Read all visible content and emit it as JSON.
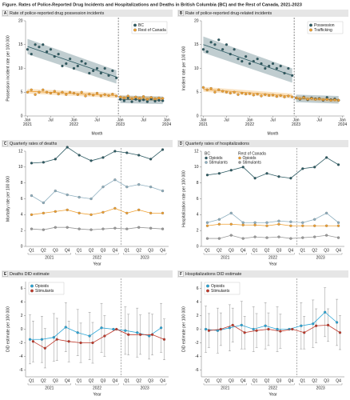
{
  "figure_title": "Figure. Rates of Police-Reported Drug Incidents and Hospitalizations and Deaths in British Columbia (BC) and the Rest of Canada, 2021-2023",
  "chart_data": [
    {
      "type": "scatter",
      "panel": "A",
      "title": "Rate of police-reported drug possession incidents",
      "x_label": "Month",
      "y_label": "Possession incident rate per 100 000",
      "x": [
        0,
        1,
        2,
        3,
        4,
        5,
        6,
        7,
        8,
        9,
        10,
        11,
        12,
        13,
        14,
        15,
        16,
        17,
        18,
        19,
        20,
        21,
        22,
        23,
        24,
        25,
        26,
        27,
        28,
        29,
        30,
        31,
        32,
        33,
        34,
        35
      ],
      "xlim": [
        -0.5,
        36.5
      ],
      "xticks": [
        {
          "value": 0,
          "label": "Jan 2021"
        },
        {
          "value": 6,
          "label": "Jul"
        },
        {
          "value": 12,
          "label": "Jan 2022"
        },
        {
          "value": 18,
          "label": "Jul"
        },
        {
          "value": 24,
          "label": "Jan 2023"
        },
        {
          "value": 30,
          "label": "Jul"
        },
        {
          "value": 36,
          "label": "Jan 2024"
        }
      ],
      "ylim": [
        0,
        20
      ],
      "yticks": [
        0,
        5,
        10,
        15,
        20
      ],
      "legend": "upper right",
      "series": [
        {
          "name": "BC",
          "color": "#2d5b63",
          "values": [
            14,
            13,
            15,
            14.5,
            15,
            13.5,
            14,
            12.5,
            13,
            10.5,
            11,
            12,
            10,
            10.5,
            11.5,
            11,
            9,
            9.5,
            10,
            9,
            10,
            8.5,
            9.5,
            8,
            3.5,
            3.2,
            3.8,
            3,
            3.5,
            3.2,
            3.4,
            3,
            3.6,
            3.1,
            3.3,
            3.2
          ]
        },
        {
          "name": "Rest of Canada",
          "color": "#f0a030",
          "values": [
            5,
            5.5,
            4.5,
            5,
            5.5,
            5,
            4.8,
            5.2,
            4.6,
            5,
            4.5,
            5,
            4.8,
            4.5,
            5,
            4.2,
            4.6,
            4.4,
            4.8,
            4.2,
            4.5,
            4.3,
            4.6,
            4.2,
            4,
            3.8,
            4.2,
            3.6,
            4,
            3.7,
            4.1,
            3.5,
            3.9,
            3.6,
            3.8,
            3.7
          ]
        }
      ],
      "fits": [
        {
          "color": "#2d5b63",
          "x": [
            0,
            23
          ],
          "values": [
            14.6,
            8.2
          ],
          "lower": [
            13,
            6.8
          ],
          "upper": [
            16.2,
            9.6
          ]
        },
        {
          "color": "#f0a030",
          "x": [
            0,
            23
          ],
          "values": [
            5.2,
            4.3
          ],
          "lower": [
            4.7,
            3.8
          ],
          "upper": [
            5.7,
            4.8
          ]
        },
        {
          "color": "#2d5b63",
          "x": [
            24,
            35
          ],
          "values": [
            3.5,
            3.3
          ],
          "lower": [
            2.7,
            2.5
          ],
          "upper": [
            4.3,
            4.1
          ]
        },
        {
          "color": "#f0a030",
          "x": [
            24,
            35
          ],
          "values": [
            3.9,
            3.6
          ],
          "lower": [
            3.5,
            3.2
          ],
          "upper": [
            4.3,
            4
          ]
        }
      ]
    },
    {
      "type": "scatter",
      "panel": "B",
      "title": "Rate of police-reported drug-related incidents",
      "x_label": "Month",
      "y_label": "Incident rate per 100 000",
      "x": [
        0,
        1,
        2,
        3,
        4,
        5,
        6,
        7,
        8,
        9,
        10,
        11,
        12,
        13,
        14,
        15,
        16,
        17,
        18,
        19,
        20,
        21,
        22,
        23,
        24,
        25,
        26,
        27,
        28,
        29,
        30,
        31,
        32,
        33,
        34,
        35
      ],
      "xlim": [
        -0.5,
        36.5
      ],
      "xticks": [
        {
          "value": 0,
          "label": "Jan 2021"
        },
        {
          "value": 6,
          "label": "Jul"
        },
        {
          "value": 12,
          "label": "Jan 2022"
        },
        {
          "value": 18,
          "label": "Jul"
        },
        {
          "value": 24,
          "label": "Jan 2023"
        },
        {
          "value": 30,
          "label": "Jul"
        },
        {
          "value": 36,
          "label": "Jan 2024"
        }
      ],
      "ylim": [
        0,
        20
      ],
      "yticks": [
        0,
        5,
        10,
        15,
        20
      ],
      "legend": "upper right",
      "series": [
        {
          "name": "Possession",
          "color": "#2d5b63",
          "values": [
            14,
            13.5,
            15.5,
            15,
            16,
            14,
            15,
            13,
            14,
            12,
            11.5,
            12.5,
            11,
            11.5,
            12,
            11,
            10,
            10.5,
            11,
            10,
            10.5,
            9,
            10,
            8.5,
            3.8,
            3.5,
            4,
            3.4,
            3.8,
            3.6,
            3.7,
            3.3,
            3.9,
            3.4,
            3.6,
            3.3
          ]
        },
        {
          "name": "Trafficking",
          "color": "#f0a030",
          "values": [
            6,
            5.5,
            5.8,
            5,
            5.5,
            5.2,
            5,
            4.8,
            5,
            4.5,
            4.8,
            4.6,
            4.7,
            4.4,
            4.6,
            4.2,
            4.5,
            4.3,
            4.4,
            4.1,
            4.3,
            4,
            4.2,
            4,
            3.8,
            3.6,
            3.9,
            3.5,
            3.7,
            3.5,
            3.6,
            3.4,
            3.5,
            3.3,
            3.4,
            3.3
          ]
        }
      ],
      "fits": [
        {
          "color": "#2d5b63",
          "x": [
            0,
            23
          ],
          "values": [
            15,
            8.5
          ],
          "lower": [
            13.3,
            7
          ],
          "upper": [
            16.7,
            10
          ]
        },
        {
          "color": "#f0a030",
          "x": [
            0,
            23
          ],
          "values": [
            5.6,
            4.2
          ],
          "lower": [
            5.1,
            3.7
          ],
          "upper": [
            6.1,
            4.7
          ]
        },
        {
          "color": "#2d5b63",
          "x": [
            24,
            35
          ],
          "values": [
            3.7,
            3.4
          ],
          "lower": [
            2.9,
            2.6
          ],
          "upper": [
            4.5,
            4.2
          ]
        },
        {
          "color": "#f0a030",
          "x": [
            24,
            35
          ],
          "values": [
            3.8,
            3.3
          ],
          "lower": [
            3.4,
            2.9
          ],
          "upper": [
            4.2,
            3.7
          ]
        }
      ]
    },
    {
      "type": "line",
      "panel": "C",
      "title": "Quarterly rates of deaths",
      "x_label": "Year",
      "y_label": "Mortality rate per 100 000",
      "categories": [
        "Q1",
        "Q2",
        "Q3",
        "Q4",
        "Q1",
        "Q2",
        "Q3",
        "Q4",
        "Q1",
        "Q2",
        "Q3",
        "Q4"
      ],
      "groups": [
        "2021",
        "2022",
        "2023"
      ],
      "ylim": [
        0,
        12
      ],
      "yticks": [
        0,
        2,
        4,
        6,
        8,
        10,
        12
      ],
      "series": [
        {
          "color": "#2d5b63",
          "values": [
            10.5,
            10.6,
            11,
            12.5,
            11.5,
            10.8,
            11.2,
            12,
            11.8,
            11.5,
            11,
            12.2
          ]
        },
        {
          "color": "#8fb0c0",
          "values": [
            6.4,
            5.5,
            7,
            6.5,
            6.2,
            6,
            7.5,
            8.4,
            7.5,
            7.8,
            7.5,
            7
          ]
        },
        {
          "color": "#f0a030",
          "values": [
            4,
            4.2,
            4.4,
            4.6,
            4.2,
            4,
            4.3,
            4.8,
            4.2,
            4.6,
            4.2,
            4.2
          ]
        },
        {
          "color": "#9a9a9a",
          "values": [
            2.2,
            2.1,
            2.4,
            2.4,
            2.2,
            2.1,
            2.2,
            2.3,
            2.2,
            2.4,
            2.3,
            2.2
          ]
        }
      ]
    },
    {
      "type": "line",
      "panel": "D",
      "title": "Quarterly rates of hospitalizations",
      "x_label": "Year",
      "y_label": "Hospitalization rate per 100 000",
      "categories": [
        "Q1",
        "Q2",
        "Q3",
        "Q4",
        "Q1",
        "Q2",
        "Q3",
        "Q4",
        "Q1",
        "Q2",
        "Q3",
        "Q4"
      ],
      "groups": [
        "2021",
        "2022",
        "2023"
      ],
      "ylim": [
        0,
        12
      ],
      "yticks": [
        0,
        2,
        4,
        6,
        8,
        10,
        12
      ],
      "legend": "upper left",
      "series": [
        {
          "name": "Opioids",
          "group": "BC",
          "color": "#2d5b63",
          "values": [
            9,
            9.2,
            9.6,
            10,
            8.6,
            9.2,
            8.8,
            8.6,
            9.8,
            10,
            11.2,
            10.3
          ]
        },
        {
          "name": "Stimulants",
          "group": "BC",
          "color": "#8fb0c0",
          "values": [
            3,
            3.4,
            4.2,
            3,
            3,
            3,
            3.2,
            3.1,
            3,
            3.4,
            4.2,
            3
          ]
        },
        {
          "name": "Opioids",
          "group": "Rest of Canada",
          "color": "#f0a030",
          "values": [
            2.6,
            2.8,
            2.8,
            2.7,
            2.7,
            2.6,
            2.8,
            2.6,
            2.6,
            2.6,
            2.6,
            2.6
          ]
        },
        {
          "name": "Stimulants",
          "group": "Rest of Canada",
          "color": "#9a9a9a",
          "values": [
            1,
            1,
            1.4,
            1,
            1.2,
            1.1,
            1.2,
            1,
            1.1,
            1.2,
            1.4,
            1.1
          ]
        }
      ]
    },
    {
      "type": "errorbar",
      "panel": "E",
      "title": "Deaths DID estimate",
      "x_label": "Year",
      "y_label": "DiD estimate per 100 000",
      "categories": [
        "Q1",
        "Q2",
        "Q3",
        "Q4",
        "Q1",
        "Q2",
        "Q3",
        "Q4",
        "Q1",
        "Q2",
        "Q3",
        "Q4"
      ],
      "groups": [
        "2021",
        "2022",
        "2023"
      ],
      "ylim": [
        -7,
        7
      ],
      "yticks": [
        -6,
        -4,
        -2,
        0,
        2,
        4,
        6
      ],
      "legend": "upper left",
      "series": [
        {
          "name": "Opioids",
          "color": "#2aa5d6",
          "values": [
            -1.5,
            -1.5,
            -1.2,
            0.3,
            -0.5,
            -1,
            0.2,
            0,
            -0.2,
            -0.5,
            -1,
            0.2
          ],
          "errors": [
            3.6,
            3.4,
            3.5,
            3.6,
            3.4,
            3.5,
            3.6,
            0,
            3.5,
            3.6,
            3.4,
            3.6
          ]
        },
        {
          "name": "Stimulants",
          "color": "#c0392b",
          "values": [
            -1.8,
            -2.8,
            -1.5,
            -1.8,
            -2,
            -2,
            -1,
            0,
            -0.8,
            -0.8,
            -0.8,
            -1.5
          ],
          "errors": [
            3,
            2.9,
            3.1,
            3,
            2.9,
            3,
            3,
            0,
            3,
            2.9,
            3,
            3
          ]
        }
      ]
    },
    {
      "type": "errorbar",
      "panel": "F",
      "title": "Hospitalizations DID estimate",
      "x_label": "Year",
      "y_label": "DiD estimate per 100 000",
      "categories": [
        "Q1",
        "Q2",
        "Q3",
        "Q4",
        "Q1",
        "Q2",
        "Q3",
        "Q4",
        "Q1",
        "Q2",
        "Q3",
        "Q4"
      ],
      "groups": [
        "2021",
        "2022",
        "2023"
      ],
      "ylim": [
        -7,
        7
      ],
      "yticks": [
        -6,
        -4,
        -2,
        0,
        2,
        4,
        6
      ],
      "legend": "upper left",
      "series": [
        {
          "name": "Opioids",
          "color": "#2aa5d6",
          "values": [
            0,
            -0.2,
            0.2,
            0.6,
            0,
            0.5,
            0,
            0,
            0.5,
            0.8,
            2.5,
            1
          ],
          "errors": [
            3.4,
            3.3,
            3.4,
            3.5,
            3.3,
            3.4,
            3.3,
            0,
            3.4,
            3.5,
            3.6,
            3.4
          ]
        },
        {
          "name": "Stimulants",
          "color": "#c0392b",
          "values": [
            -0.2,
            0,
            0.6,
            -0.5,
            -0.2,
            0,
            -0.3,
            0,
            -0.5,
            0.5,
            0.6,
            -0.5
          ],
          "errors": [
            2.5,
            2.4,
            2.5,
            2.4,
            2.5,
            2.4,
            2.5,
            0,
            2.4,
            2.5,
            2.4,
            2.5
          ]
        }
      ]
    }
  ]
}
